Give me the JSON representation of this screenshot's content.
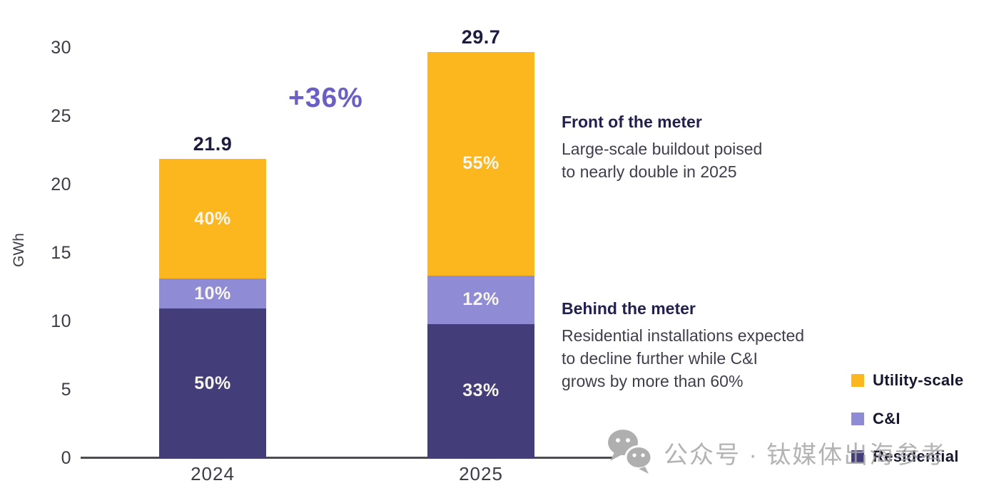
{
  "chart_data": {
    "type": "bar",
    "stacked": true,
    "ylabel": "GWh",
    "ylim": [
      0,
      30
    ],
    "yticks": [
      0,
      5,
      10,
      15,
      20,
      25,
      30
    ],
    "categories": [
      "2024",
      "2025"
    ],
    "totals": [
      21.9,
      29.7
    ],
    "growth_label": "+36%",
    "grid": false,
    "legend_position": "right",
    "series": [
      {
        "name": "Residential",
        "color": "#433d7a",
        "shares_pct": [
          50,
          33
        ]
      },
      {
        "name": "C&I",
        "color": "#8f8bd4",
        "shares_pct": [
          10,
          12
        ]
      },
      {
        "name": "Utility-scale",
        "color": "#fbb71d",
        "shares_pct": [
          40,
          55
        ]
      }
    ]
  },
  "annotations": {
    "front": {
      "title": "Front of the meter",
      "lines": [
        "Large-scale buildout poised",
        "to nearly double in 2025"
      ]
    },
    "behind": {
      "title": "Behind the meter",
      "lines": [
        "Residential installations expected",
        "to decline further while C&I",
        "grows by more than 60%"
      ]
    }
  },
  "legend": {
    "items": [
      {
        "label": "Utility-scale",
        "color": "#fbb71d"
      },
      {
        "label": "C&I",
        "color": "#8f8bd4"
      },
      {
        "label": "Residential",
        "color": "#433d7a"
      }
    ]
  },
  "watermark": {
    "icon": "wechat-icon",
    "text": "公众号 · 钛媒体出海参考",
    "color": "#a6a6a6"
  }
}
